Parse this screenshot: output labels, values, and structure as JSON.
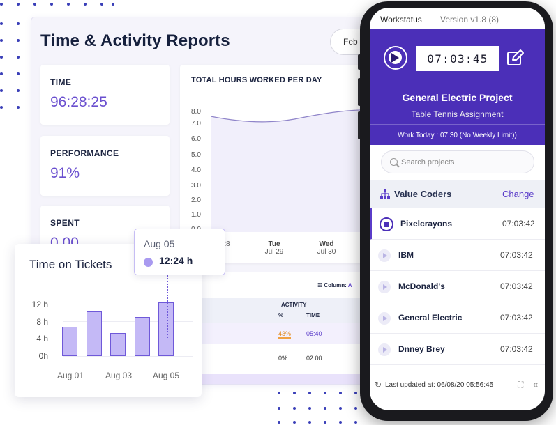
{
  "dashboard": {
    "title": "Time & Activity Reports",
    "month": "Feb",
    "stats": [
      {
        "label": "TIME",
        "value": "96:28:25"
      },
      {
        "label": "PERFORMANCE",
        "value": "91%"
      },
      {
        "label": "SPENT",
        "value": "0.00"
      }
    ],
    "hours_chart": {
      "title": "TOTAL HOURS WORKED PER DAY",
      "yticks": [
        "8.0",
        "7.0",
        "6.0",
        "5.0",
        "4.0",
        "3.0",
        "2.0",
        "1.0",
        "0.0"
      ],
      "xticks": [
        {
          "day": "",
          "date": "28"
        },
        {
          "day": "Tue",
          "date": "Jul 29"
        },
        {
          "day": "Wed",
          "date": "Jul 30"
        }
      ]
    },
    "table": {
      "column_label": "Column:",
      "column_value": "A",
      "header_group": "ACTIVITY",
      "header_pct": "%",
      "header_time": "TIME",
      "rows": [
        {
          "pct": "43%",
          "time": "05:40"
        },
        {
          "pct": "0%",
          "time": "02:00"
        }
      ]
    }
  },
  "tickets": {
    "title": "Time on Tickets",
    "yticks": [
      "12 h",
      "8 h",
      "4 h",
      "0h"
    ],
    "xticks": [
      "Aug 01",
      "Aug 03",
      "Aug 05"
    ],
    "tooltip": {
      "date": "Aug 05",
      "value": "12:24 h"
    }
  },
  "chart_data": {
    "type": "bar",
    "title": "Time on Tickets",
    "categories": [
      "Aug 01",
      "Aug 02",
      "Aug 03",
      "Aug 04",
      "Aug 05"
    ],
    "values": [
      6.7,
      10.2,
      5.3,
      8.9,
      12.4
    ],
    "ylabel": "hours",
    "ylim": [
      0,
      12
    ],
    "color": "#c4b9f6",
    "border_color": "#6f59d9"
  },
  "app": {
    "name": "Workstatus",
    "version": "Version v1.8 (8)",
    "timer": "07:03:45",
    "project": "General Electric Project",
    "task": "Table Tennis Assignment",
    "work_today": "Work Today : 07:30 (No Weekly Limit))",
    "search_placeholder": "Search projects",
    "org": "Value Coders",
    "change": "Change",
    "projects": [
      {
        "name": "Pixelcrayons",
        "time": "07:03:42"
      },
      {
        "name": "IBM",
        "time": "07:03:42"
      },
      {
        "name": "McDonald's",
        "time": "07:03:42"
      },
      {
        "name": "General Electric",
        "time": "07:03:42"
      },
      {
        "name": "Dnney Brey",
        "time": "07:03:42"
      }
    ],
    "last_updated": "Last updated at: 06/08/20  05:56:45",
    "accent": "#4b2fb8"
  }
}
